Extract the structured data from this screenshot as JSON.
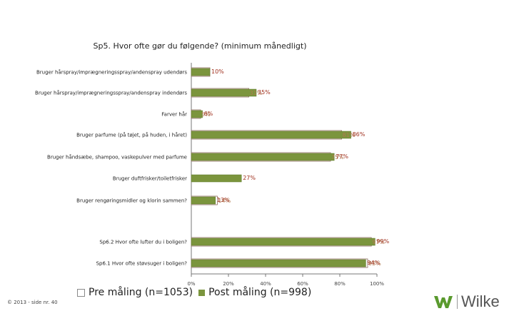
{
  "chart_data": {
    "type": "bar",
    "orientation": "horizontal",
    "title": "Sp5. Hvor ofte gør du følgende? (minimum månedligt)",
    "categories": [
      "Bruger hårspray/imprægneringsspray/andenspray udendørs",
      "Bruger hårspray/imprægneringsspray/andenspray indendørs",
      "Farver hår",
      "Bruger parfume (på tøjet, på huden, i håret)",
      "Bruger håndsæbe, shampoo, vaskepulver med parfume",
      "Bruger duftfrisker/toiletfrisker",
      "Bruger rengøringsmidler og klorin sammen?",
      "",
      "Sp6.2 Hvor ofte lufter du i boligen?",
      "Sp6.1 Hvor ofte støvsuger i boligen?"
    ],
    "series": [
      {
        "name": "Pre måling (n=1053)",
        "values": [
          10,
          31,
          5,
          81,
          75,
          null,
          14,
          null,
          97,
          95
        ],
        "labels": [
          "",
          "31%",
          "5%",
          "81%",
          "75%",
          "",
          "14%",
          "",
          "97%",
          "95%"
        ],
        "color": "#ffffff"
      },
      {
        "name": "Post måling (n=998)",
        "values": [
          10,
          35,
          6,
          86,
          77,
          27,
          13,
          null,
          99,
          94
        ],
        "labels": [
          "10%",
          "35%",
          "6%",
          "86%",
          "77%",
          "27%",
          "13%",
          "",
          "99%",
          "94%"
        ],
        "color": "#7b953d"
      }
    ],
    "xlim": [
      0,
      100
    ],
    "xticks": [
      "0%",
      "20%",
      "40%",
      "60%",
      "80%",
      "100%"
    ],
    "xlabel": "",
    "ylabel": "",
    "legend_position": "bottom",
    "grid": false
  },
  "legend": {
    "pre": "Pre måling (n=1053)",
    "post": "Post måling (n=998)"
  },
  "footer": "© 2013 - side nr. 40",
  "logo": {
    "text": "Wilke",
    "color": "#5a9a2e"
  }
}
